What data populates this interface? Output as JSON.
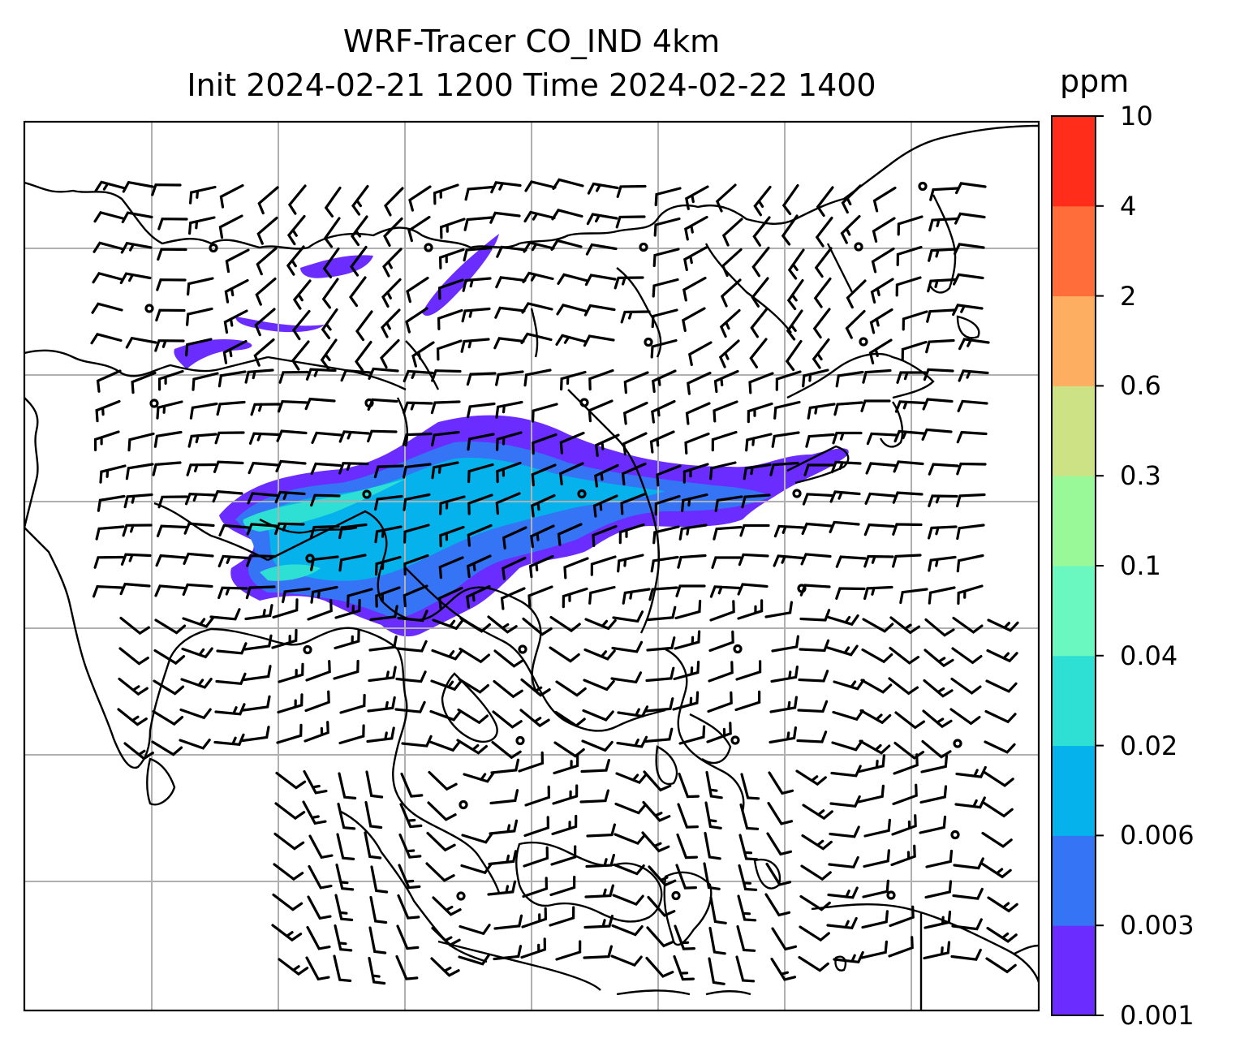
{
  "title_line1": "WRF-Tracer CO_IND 4km",
  "title_line2": "Init 2024-02-21 1200 Time 2024-02-22 1400",
  "colorbar": {
    "unit": "ppm",
    "levels": [
      "0.001",
      "0.003",
      "0.006",
      "0.02",
      "0.04",
      "0.1",
      "0.3",
      "0.6",
      "2",
      "4",
      "10"
    ],
    "colors": [
      "#6a2cff",
      "#3574f4",
      "#05b2ec",
      "#2ee0d4",
      "#6af7c0",
      "#99f898",
      "#cde284",
      "#fdae61",
      "#ff6e3a",
      "#ff2d1a"
    ]
  },
  "map": {
    "gridlines": true,
    "plume_colors": {
      "outer": "#6a2cff",
      "mid": "#3574f4",
      "inner": "#05b2ec",
      "core": "#2ee0d4"
    },
    "line_color": "#000000",
    "grid_color": "#b0b0b0"
  }
}
